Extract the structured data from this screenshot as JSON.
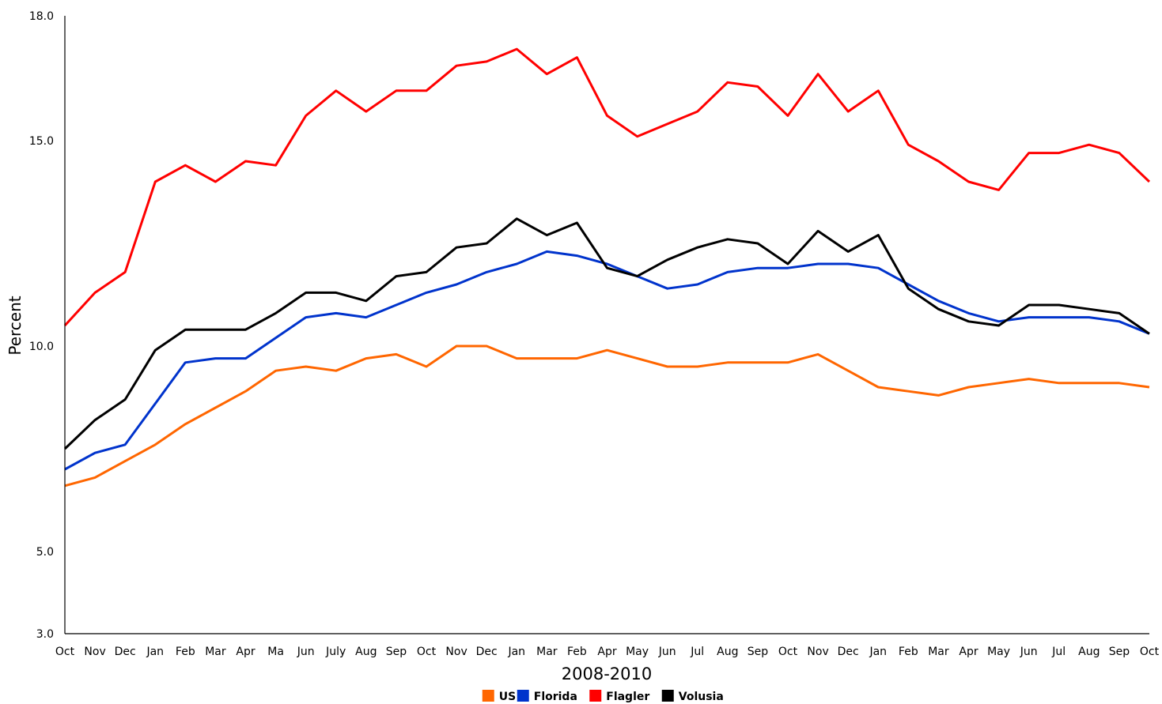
{
  "chart_data": {
    "type": "line",
    "xlabel": "2008-2010",
    "ylabel": "Percent",
    "ylim": [
      3.0,
      18.0
    ],
    "yticks": [
      {
        "value": 18.0,
        "label": "18.0"
      },
      {
        "value": 15.0,
        "label": "15.0"
      },
      {
        "value": 10.0,
        "label": "10.0"
      },
      {
        "value": 5.0,
        "label": "5.0"
      },
      {
        "value": 3.0,
        "label": "3.0"
      }
    ],
    "grid": false,
    "legend_position": "bottom",
    "categories": [
      "Oct",
      "Nov",
      "Dec",
      "Jan",
      "Feb",
      "Mar",
      "Apr",
      "Ma",
      "Jun",
      "July",
      "Aug",
      "Sep",
      "Oct",
      "Nov",
      "Dec",
      "Jan",
      "Mar",
      "Feb",
      "Apr",
      "May",
      "Jun",
      "Jul",
      "Aug",
      "Sep",
      "Oct",
      "Nov",
      "Dec",
      "Jan",
      "Feb",
      "Mar",
      "Apr",
      "May",
      "Jun",
      "Jul",
      "Aug",
      "Sep",
      "Oct"
    ],
    "series": [
      {
        "name": "US",
        "color": "#ff6600",
        "values": [
          6.6,
          6.8,
          7.2,
          7.6,
          8.1,
          8.5,
          8.9,
          9.4,
          9.5,
          9.4,
          9.7,
          9.8,
          9.5,
          10.0,
          10.0,
          9.7,
          9.7,
          9.7,
          9.9,
          9.7,
          9.5,
          9.5,
          9.6,
          9.6,
          9.6,
          9.8,
          9.4,
          9.0,
          8.9,
          8.8,
          9.0,
          9.1,
          9.2,
          9.1,
          9.1,
          9.1,
          9.0
        ]
      },
      {
        "name": "Florida",
        "color": "#0033cc",
        "values": [
          7.0,
          7.4,
          7.6,
          8.6,
          9.6,
          9.7,
          9.7,
          10.2,
          10.7,
          10.8,
          10.7,
          11.0,
          11.3,
          11.5,
          11.8,
          12.0,
          12.3,
          12.2,
          12.0,
          11.7,
          11.4,
          11.5,
          11.8,
          11.9,
          11.9,
          12.0,
          12.0,
          11.9,
          11.5,
          11.1,
          10.8,
          10.6,
          10.7,
          10.7,
          10.7,
          10.6,
          10.3
        ]
      },
      {
        "name": "Flagler",
        "color": "#ff0000",
        "values": [
          10.5,
          11.3,
          11.8,
          14.0,
          14.4,
          14.0,
          14.5,
          14.4,
          15.6,
          16.2,
          15.7,
          16.2,
          16.2,
          16.8,
          16.9,
          17.2,
          16.6,
          17.0,
          15.6,
          15.1,
          15.4,
          15.7,
          16.4,
          16.3,
          15.6,
          16.6,
          15.7,
          16.2,
          14.9,
          14.5,
          14.0,
          13.8,
          14.7,
          14.7,
          14.9,
          14.7,
          14.0
        ]
      },
      {
        "name": "Volusia",
        "color": "#000000",
        "values": [
          7.5,
          8.2,
          8.7,
          9.9,
          10.4,
          10.4,
          10.4,
          10.8,
          11.3,
          11.3,
          11.1,
          11.7,
          11.8,
          12.4,
          12.5,
          13.1,
          12.7,
          13.0,
          11.9,
          11.7,
          12.1,
          12.4,
          12.6,
          12.5,
          12.0,
          12.8,
          12.3,
          12.7,
          11.4,
          10.9,
          10.6,
          10.5,
          11.0,
          11.0,
          10.9,
          10.8,
          10.3
        ]
      }
    ]
  }
}
